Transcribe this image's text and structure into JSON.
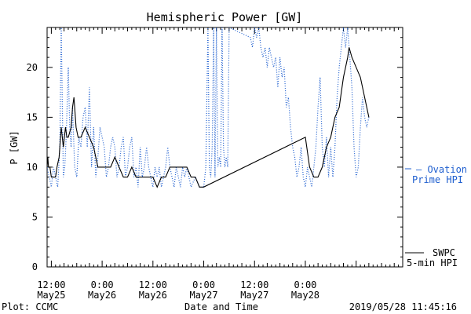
{
  "chart_data": {
    "type": "line",
    "title": "Hemispheric Power [GW]",
    "ylabel": "P [GW]",
    "xlabel": "Date and Time",
    "ylim": [
      0,
      24
    ],
    "xlim": [
      "2019-05-25 11:00",
      "2019-05-28 23:00"
    ],
    "yticks": [
      "0",
      "5",
      "10",
      "15",
      "20"
    ],
    "xticks": [
      {
        "top": "12:00",
        "bottom": "May25",
        "at": "2019-05-25 12:00"
      },
      {
        "top": "0:00",
        "bottom": "May26",
        "at": "2019-05-26 00:00"
      },
      {
        "top": "12:00",
        "bottom": "May26",
        "at": "2019-05-26 12:00"
      },
      {
        "top": "0:00",
        "bottom": "May27",
        "at": "2019-05-27 00:00"
      },
      {
        "top": "12:00",
        "bottom": "May27",
        "at": "2019-05-27 12:00"
      },
      {
        "top": "0:00",
        "bottom": "May28",
        "at": "2019-05-28 00:00"
      }
    ],
    "series": [
      {
        "name": "SWPC 5-min HPI",
        "color": "#000000",
        "style": "solid",
        "points": [
          [
            "2019-05-25 11:00",
            10
          ],
          [
            "2019-05-25 11:10",
            11
          ],
          [
            "2019-05-25 11:20",
            10
          ],
          [
            "2019-05-25 11:40",
            10
          ],
          [
            "2019-05-25 12:00",
            9
          ],
          [
            "2019-05-25 13:00",
            9
          ],
          [
            "2019-05-25 13:20",
            10
          ],
          [
            "2019-05-25 13:50",
            11
          ],
          [
            "2019-05-25 14:20",
            14
          ],
          [
            "2019-05-25 14:50",
            12
          ],
          [
            "2019-05-25 15:20",
            14
          ],
          [
            "2019-05-25 15:40",
            13
          ],
          [
            "2019-05-25 16:00",
            13
          ],
          [
            "2019-05-25 16:40",
            14
          ],
          [
            "2019-05-25 17:00",
            16
          ],
          [
            "2019-05-25 17:20",
            17
          ],
          [
            "2019-05-25 17:50",
            14
          ],
          [
            "2019-05-25 18:20",
            13
          ],
          [
            "2019-05-25 19:00",
            13
          ],
          [
            "2019-05-25 20:00",
            14
          ],
          [
            "2019-05-25 21:00",
            13
          ],
          [
            "2019-05-25 22:00",
            12
          ],
          [
            "2019-05-25 23:00",
            10
          ],
          [
            "2019-05-26 00:00",
            10
          ],
          [
            "2019-05-26 01:00",
            10
          ],
          [
            "2019-05-26 02:00",
            10
          ],
          [
            "2019-05-26 03:00",
            11
          ],
          [
            "2019-05-26 04:00",
            10
          ],
          [
            "2019-05-26 05:00",
            9
          ],
          [
            "2019-05-26 06:00",
            9
          ],
          [
            "2019-05-26 07:00",
            10
          ],
          [
            "2019-05-26 08:00",
            9
          ],
          [
            "2019-05-26 10:00",
            9
          ],
          [
            "2019-05-26 11:00",
            9
          ],
          [
            "2019-05-26 12:00",
            9
          ],
          [
            "2019-05-26 13:00",
            8
          ],
          [
            "2019-05-26 14:00",
            9
          ],
          [
            "2019-05-26 15:00",
            9
          ],
          [
            "2019-05-26 16:00",
            10
          ],
          [
            "2019-05-26 18:00",
            10
          ],
          [
            "2019-05-26 20:00",
            10
          ],
          [
            "2019-05-26 21:00",
            9
          ],
          [
            "2019-05-26 22:00",
            9
          ],
          [
            "2019-05-26 23:00",
            8
          ],
          [
            "2019-05-27 00:00",
            8
          ],
          [
            "2019-05-28 00:00",
            13
          ],
          [
            "2019-05-28 01:00",
            10
          ],
          [
            "2019-05-28 02:00",
            9
          ],
          [
            "2019-05-28 03:00",
            9
          ],
          [
            "2019-05-28 04:00",
            10
          ],
          [
            "2019-05-28 05:00",
            12
          ],
          [
            "2019-05-28 06:00",
            13
          ],
          [
            "2019-05-28 07:00",
            15
          ],
          [
            "2019-05-28 08:00",
            16
          ],
          [
            "2019-05-28 09:00",
            19
          ],
          [
            "2019-05-28 10:00",
            21
          ],
          [
            "2019-05-28 10:20",
            22
          ],
          [
            "2019-05-28 11:00",
            21
          ],
          [
            "2019-05-28 12:00",
            20
          ],
          [
            "2019-05-28 13:00",
            19
          ],
          [
            "2019-05-28 14:00",
            17
          ],
          [
            "2019-05-28 15:00",
            15
          ]
        ]
      },
      {
        "name": "Ovation Prime HPI",
        "color": "#1f5fcf",
        "style": "dotted",
        "points": [
          [
            "2019-05-25 11:00",
            10
          ],
          [
            "2019-05-25 11:30",
            9
          ],
          [
            "2019-05-25 12:00",
            8
          ],
          [
            "2019-05-25 12:30",
            10
          ],
          [
            "2019-05-25 13:00",
            9
          ],
          [
            "2019-05-25 13:30",
            8
          ],
          [
            "2019-05-25 14:00",
            12
          ],
          [
            "2019-05-25 14:20",
            24
          ],
          [
            "2019-05-25 14:50",
            9
          ],
          [
            "2019-05-25 15:10",
            10
          ],
          [
            "2019-05-25 15:30",
            13
          ],
          [
            "2019-05-25 16:00",
            20
          ],
          [
            "2019-05-25 16:20",
            14
          ],
          [
            "2019-05-25 16:40",
            12
          ],
          [
            "2019-05-25 17:00",
            16
          ],
          [
            "2019-05-25 17:30",
            10
          ],
          [
            "2019-05-25 18:00",
            9
          ],
          [
            "2019-05-25 18:30",
            13
          ],
          [
            "2019-05-25 19:00",
            12
          ],
          [
            "2019-05-25 19:30",
            15
          ],
          [
            "2019-05-25 20:00",
            16
          ],
          [
            "2019-05-25 20:30",
            12
          ],
          [
            "2019-05-25 21:00",
            18
          ],
          [
            "2019-05-25 21:30",
            10
          ],
          [
            "2019-05-25 22:00",
            14
          ],
          [
            "2019-05-25 22:30",
            9
          ],
          [
            "2019-05-25 23:00",
            11
          ],
          [
            "2019-05-25 23:30",
            14
          ],
          [
            "2019-05-26 00:00",
            13
          ],
          [
            "2019-05-26 00:30",
            12
          ],
          [
            "2019-05-26 01:00",
            9
          ],
          [
            "2019-05-26 01:30",
            10
          ],
          [
            "2019-05-26 02:00",
            12
          ],
          [
            "2019-05-26 02:30",
            13
          ],
          [
            "2019-05-26 03:00",
            12
          ],
          [
            "2019-05-26 03:30",
            9
          ],
          [
            "2019-05-26 04:00",
            10
          ],
          [
            "2019-05-26 04:30",
            12
          ],
          [
            "2019-05-26 05:00",
            13
          ],
          [
            "2019-05-26 05:30",
            9
          ],
          [
            "2019-05-26 06:00",
            10
          ],
          [
            "2019-05-26 06:30",
            12
          ],
          [
            "2019-05-26 07:00",
            13
          ],
          [
            "2019-05-26 07:30",
            9
          ],
          [
            "2019-05-26 08:00",
            10
          ],
          [
            "2019-05-26 08:30",
            8
          ],
          [
            "2019-05-26 09:00",
            12
          ],
          [
            "2019-05-26 09:30",
            9
          ],
          [
            "2019-05-26 10:00",
            10
          ],
          [
            "2019-05-26 10:30",
            12
          ],
          [
            "2019-05-26 11:00",
            10
          ],
          [
            "2019-05-26 11:30",
            9
          ],
          [
            "2019-05-26 12:00",
            8
          ],
          [
            "2019-05-26 12:30",
            10
          ],
          [
            "2019-05-26 13:00",
            9
          ],
          [
            "2019-05-26 13:30",
            10
          ],
          [
            "2019-05-26 14:00",
            8
          ],
          [
            "2019-05-26 14:30",
            9
          ],
          [
            "2019-05-26 15:00",
            10
          ],
          [
            "2019-05-26 15:30",
            12
          ],
          [
            "2019-05-26 16:00",
            10
          ],
          [
            "2019-05-26 16:30",
            9
          ],
          [
            "2019-05-26 17:00",
            8
          ],
          [
            "2019-05-26 17:30",
            10
          ],
          [
            "2019-05-26 18:00",
            9
          ],
          [
            "2019-05-26 18:30",
            8
          ],
          [
            "2019-05-26 19:00",
            10
          ],
          [
            "2019-05-26 19:30",
            9
          ],
          [
            "2019-05-26 20:00",
            10
          ],
          [
            "2019-05-26 20:30",
            9
          ],
          [
            "2019-05-26 21:00",
            8
          ],
          [
            "2019-05-26 22:00",
            9
          ],
          [
            "2019-05-26 23:00",
            8
          ],
          [
            "2019-05-27 00:00",
            8
          ],
          [
            "2019-05-27 00:30",
            10
          ],
          [
            "2019-05-27 01:00",
            24
          ],
          [
            "2019-05-27 01:20",
            10
          ],
          [
            "2019-05-27 01:40",
            9
          ],
          [
            "2019-05-27 02:00",
            12
          ],
          [
            "2019-05-27 02:20",
            24
          ],
          [
            "2019-05-27 02:40",
            9
          ],
          [
            "2019-05-27 03:00",
            24
          ],
          [
            "2019-05-27 03:20",
            10
          ],
          [
            "2019-05-27 03:40",
            11
          ],
          [
            "2019-05-27 04:00",
            10
          ],
          [
            "2019-05-27 04:20",
            24
          ],
          [
            "2019-05-27 04:40",
            12
          ],
          [
            "2019-05-27 05:00",
            10
          ],
          [
            "2019-05-27 05:20",
            11
          ],
          [
            "2019-05-27 05:40",
            10
          ],
          [
            "2019-05-27 06:00",
            24
          ],
          [
            "2019-05-27 11:00",
            23
          ],
          [
            "2019-05-27 11:30",
            22
          ],
          [
            "2019-05-27 12:00",
            24
          ],
          [
            "2019-05-27 12:30",
            23
          ],
          [
            "2019-05-27 13:00",
            24
          ],
          [
            "2019-05-27 13:30",
            22
          ],
          [
            "2019-05-27 14:00",
            21
          ],
          [
            "2019-05-27 14:30",
            22
          ],
          [
            "2019-05-27 15:00",
            20
          ],
          [
            "2019-05-27 15:30",
            22
          ],
          [
            "2019-05-27 16:00",
            21
          ],
          [
            "2019-05-27 16:30",
            20
          ],
          [
            "2019-05-27 17:00",
            21
          ],
          [
            "2019-05-27 17:30",
            18
          ],
          [
            "2019-05-27 18:00",
            21
          ],
          [
            "2019-05-27 18:30",
            19
          ],
          [
            "2019-05-27 19:00",
            20
          ],
          [
            "2019-05-27 19:30",
            16
          ],
          [
            "2019-05-27 20:00",
            17
          ],
          [
            "2019-05-27 20:30",
            14
          ],
          [
            "2019-05-27 21:00",
            12
          ],
          [
            "2019-05-27 21:30",
            11
          ],
          [
            "2019-05-27 22:00",
            9
          ],
          [
            "2019-05-27 22:30",
            10
          ],
          [
            "2019-05-27 23:00",
            12
          ],
          [
            "2019-05-27 23:30",
            9
          ],
          [
            "2019-05-28 00:00",
            8
          ],
          [
            "2019-05-28 00:30",
            10
          ],
          [
            "2019-05-28 01:00",
            9
          ],
          [
            "2019-05-28 01:30",
            8
          ],
          [
            "2019-05-28 02:00",
            10
          ],
          [
            "2019-05-28 02:30",
            12
          ],
          [
            "2019-05-28 03:00",
            16
          ],
          [
            "2019-05-28 03:30",
            19
          ],
          [
            "2019-05-28 04:00",
            12
          ],
          [
            "2019-05-28 04:30",
            10
          ],
          [
            "2019-05-28 05:00",
            13
          ],
          [
            "2019-05-28 05:30",
            9
          ],
          [
            "2019-05-28 06:00",
            12
          ],
          [
            "2019-05-28 06:30",
            9
          ],
          [
            "2019-05-28 07:00",
            12
          ],
          [
            "2019-05-28 07:30",
            17
          ],
          [
            "2019-05-28 08:00",
            20
          ],
          [
            "2019-05-28 08:30",
            22
          ],
          [
            "2019-05-28 09:00",
            24
          ],
          [
            "2019-05-28 09:30",
            22
          ],
          [
            "2019-05-28 10:00",
            24
          ],
          [
            "2019-05-28 10:30",
            21
          ],
          [
            "2019-05-28 11:00",
            18
          ],
          [
            "2019-05-28 11:30",
            12
          ],
          [
            "2019-05-28 12:00",
            9
          ],
          [
            "2019-05-28 12:30",
            10
          ],
          [
            "2019-05-28 13:00",
            14
          ],
          [
            "2019-05-28 13:30",
            17
          ],
          [
            "2019-05-28 14:00",
            15
          ],
          [
            "2019-05-28 14:30",
            14
          ],
          [
            "2019-05-28 15:00",
            15
          ]
        ]
      }
    ],
    "legend": {
      "ovation_line1": "Ovation",
      "ovation_line2": "Prime HPI",
      "swpc_line1": "SWPC",
      "swpc_line2": "5-min HPI"
    },
    "footer": {
      "left": "Plot: CCMC",
      "center": "Date and Time",
      "right": "2019/05/28 11:45:16"
    }
  }
}
